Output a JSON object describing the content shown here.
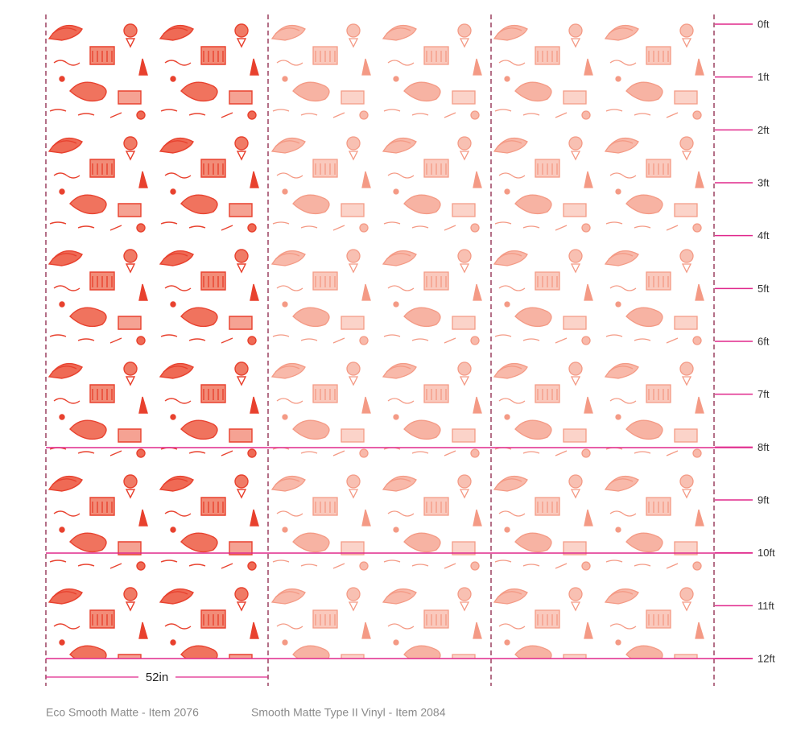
{
  "ruler": {
    "labels": [
      "0ft",
      "1ft",
      "2ft",
      "3ft",
      "4ft",
      "5ft",
      "6ft",
      "7ft",
      "8ft",
      "9ft",
      "10ft",
      "11ft",
      "12ft"
    ]
  },
  "width_label": "52in",
  "captions": [
    "Eco Smooth Matte - Item 2076",
    "Smooth Matte Type II Vinyl - Item 2084"
  ]
}
